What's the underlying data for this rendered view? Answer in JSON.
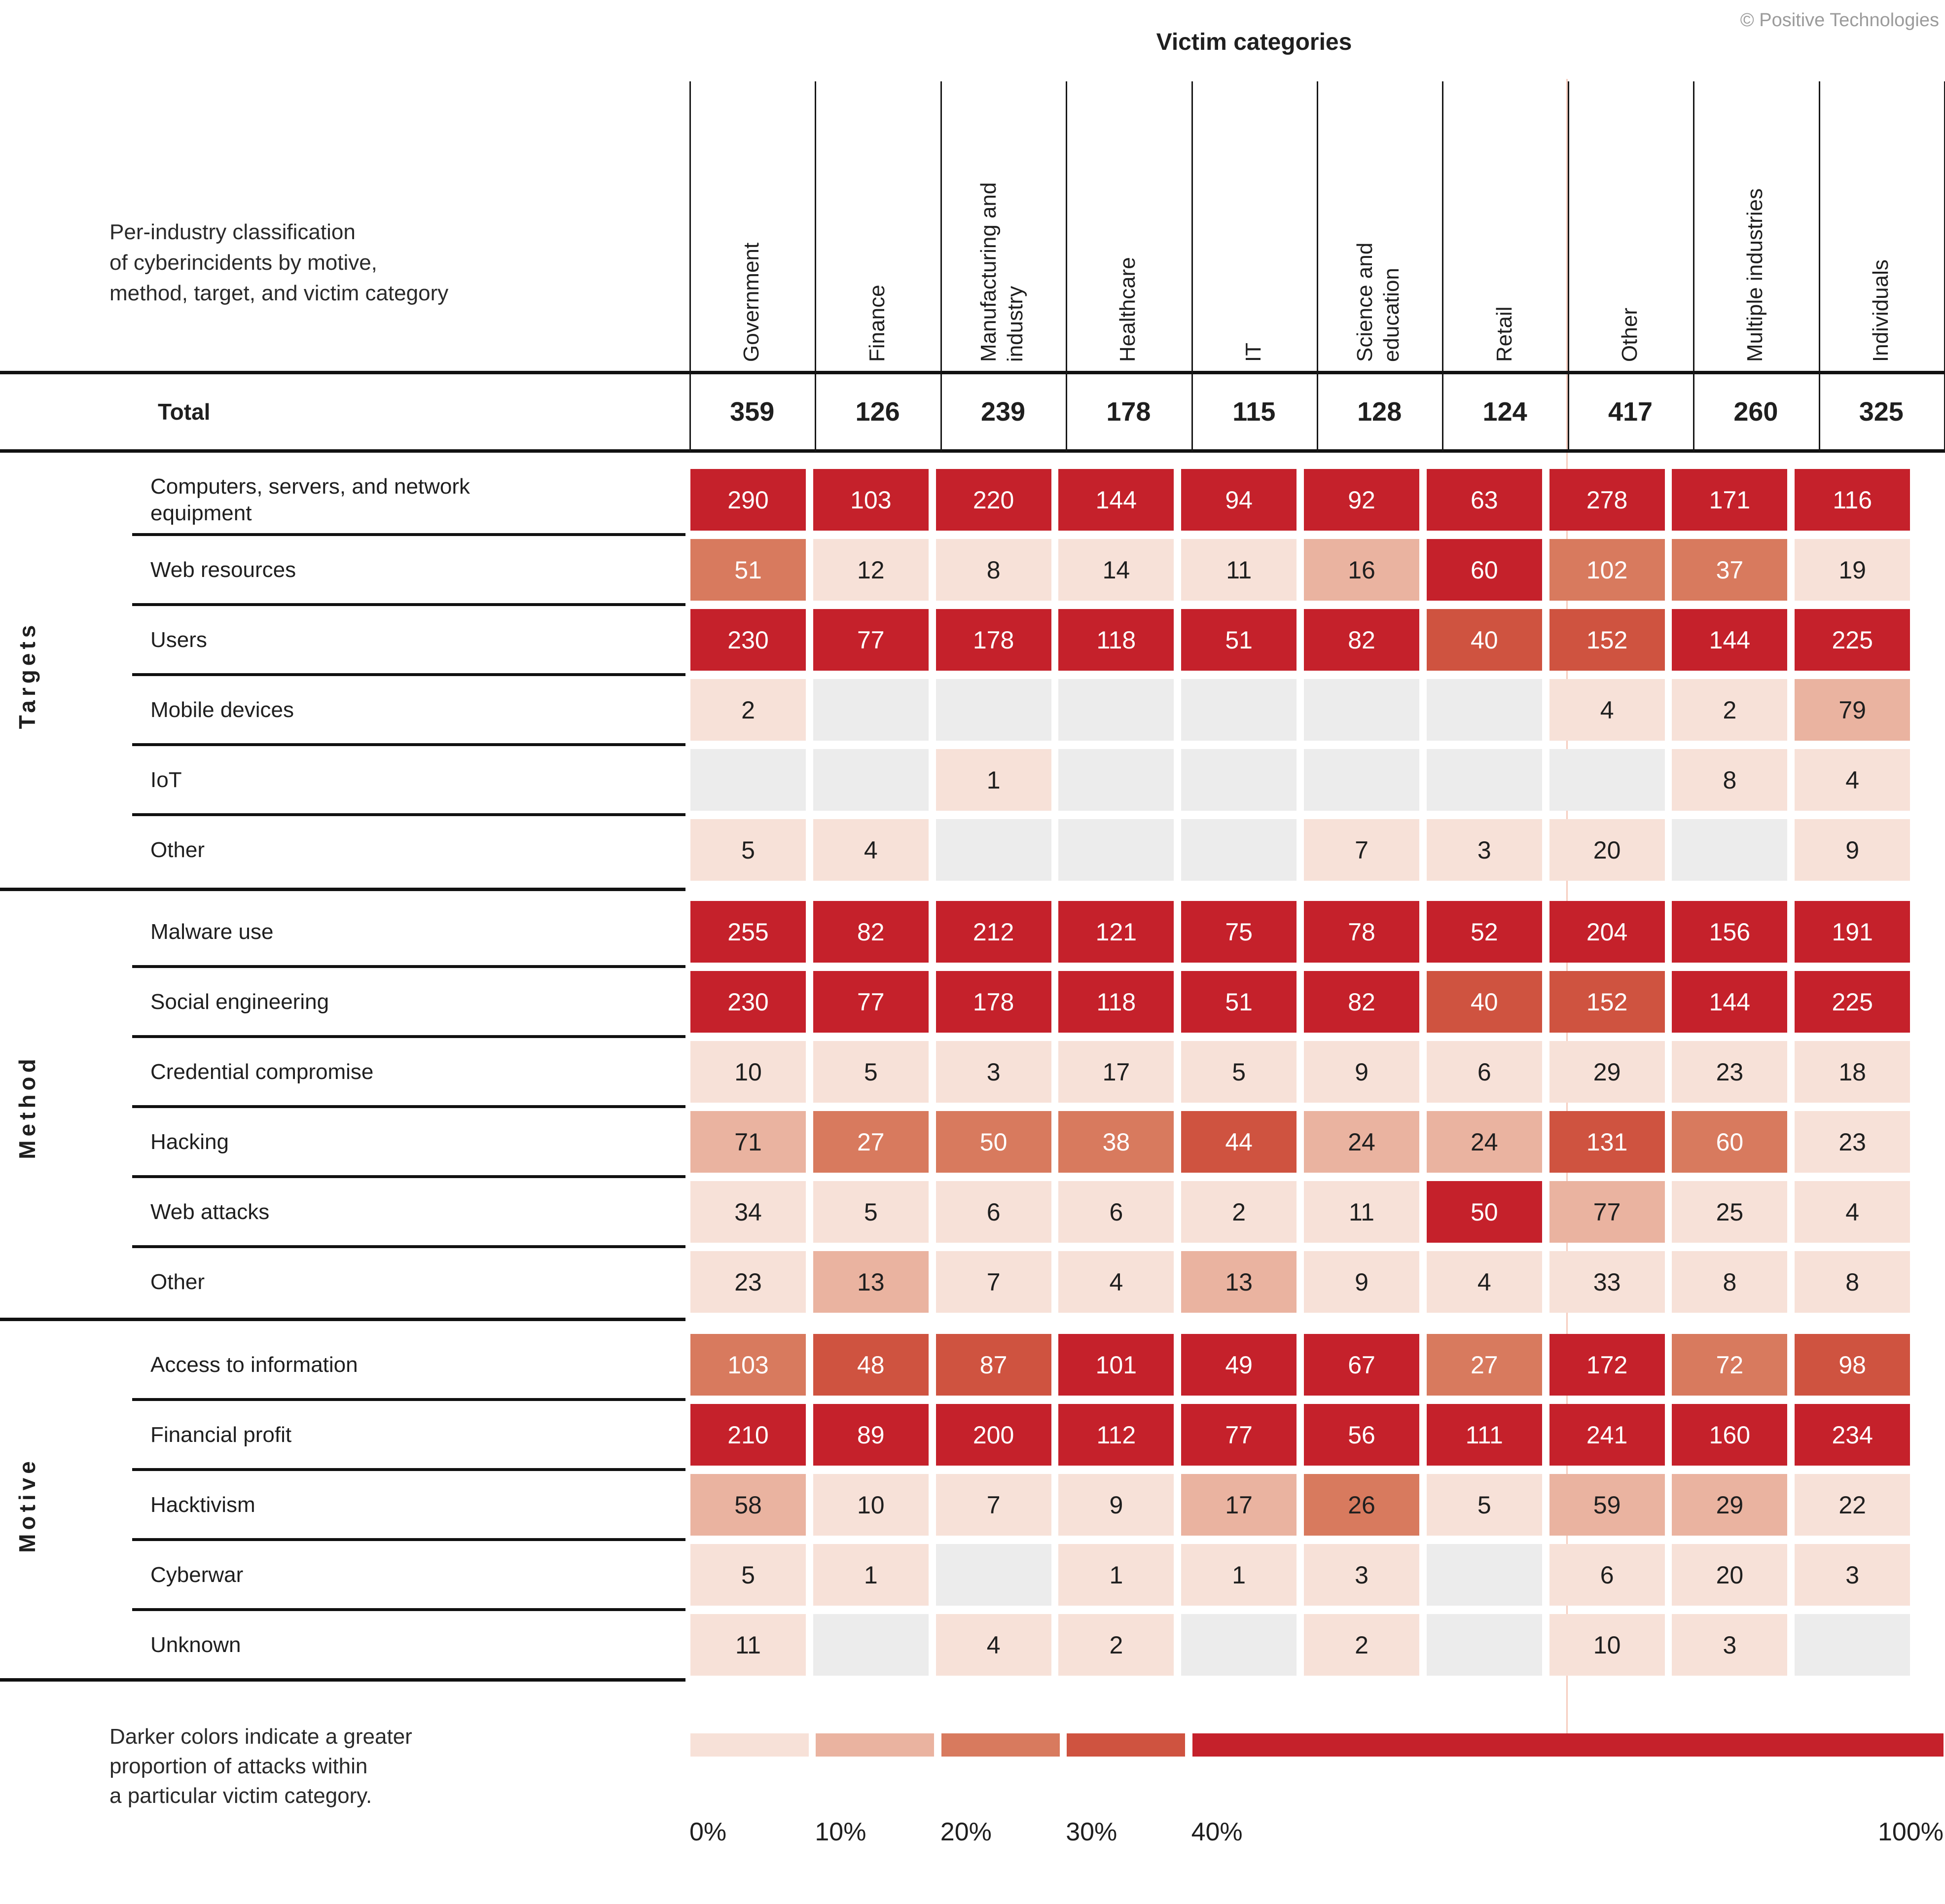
{
  "header": {
    "title": "Victim categories",
    "copyright": "© Positive Technologies"
  },
  "chart_data": {
    "type": "heatmap",
    "title": "Victim categories",
    "description": "Per-industry classification\nof cyberincidents by motive,\nmethod, target, and victim category",
    "columns": [
      "Government",
      "Finance",
      "Manufacturing and\nindustry",
      "Healthcare",
      "IT",
      "Science and\neducation",
      "Retail",
      "Other",
      "Multiple industries",
      "Individuals"
    ],
    "total_row": {
      "label": "Total",
      "values": [
        359,
        126,
        239,
        178,
        115,
        128,
        124,
        417,
        260,
        325
      ]
    },
    "sections": [
      {
        "name": "Targets",
        "rows": [
          {
            "label": "Computers, servers, and network\nequipment",
            "values": [
              290,
              103,
              220,
              144,
              94,
              92,
              63,
              278,
              171,
              116
            ],
            "levels": [
              5,
              5,
              5,
              5,
              5,
              5,
              5,
              5,
              5,
              5
            ]
          },
          {
            "label": "Web resources",
            "values": [
              51,
              12,
              8,
              14,
              11,
              16,
              60,
              102,
              37,
              19
            ],
            "levels": [
              3,
              1,
              1,
              1,
              1,
              2,
              5,
              3,
              3,
              1
            ]
          },
          {
            "label": "Users",
            "values": [
              230,
              77,
              178,
              118,
              51,
              82,
              40,
              152,
              144,
              225
            ],
            "levels": [
              5,
              5,
              5,
              5,
              5,
              5,
              4,
              4,
              5,
              5
            ]
          },
          {
            "label": "Mobile devices",
            "values": [
              2,
              null,
              null,
              null,
              null,
              null,
              null,
              4,
              2,
              79
            ],
            "levels": [
              1,
              0,
              0,
              0,
              0,
              0,
              0,
              1,
              1,
              2
            ]
          },
          {
            "label": "IoT",
            "values": [
              null,
              null,
              1,
              null,
              null,
              null,
              null,
              null,
              8,
              4
            ],
            "levels": [
              0,
              0,
              1,
              0,
              0,
              0,
              0,
              0,
              1,
              1
            ]
          },
          {
            "label": "Other",
            "values": [
              5,
              4,
              null,
              null,
              null,
              7,
              3,
              20,
              null,
              9
            ],
            "levels": [
              1,
              1,
              0,
              0,
              0,
              1,
              1,
              1,
              0,
              1
            ]
          }
        ]
      },
      {
        "name": "Method",
        "rows": [
          {
            "label": "Malware use",
            "values": [
              255,
              82,
              212,
              121,
              75,
              78,
              52,
              204,
              156,
              191
            ],
            "levels": [
              5,
              5,
              5,
              5,
              5,
              5,
              5,
              5,
              5,
              5
            ]
          },
          {
            "label": "Social engineering",
            "values": [
              230,
              77,
              178,
              118,
              51,
              82,
              40,
              152,
              144,
              225
            ],
            "levels": [
              5,
              5,
              5,
              5,
              5,
              5,
              4,
              4,
              5,
              5
            ]
          },
          {
            "label": "Credential compromise",
            "values": [
              10,
              5,
              3,
              17,
              5,
              9,
              6,
              29,
              23,
              18
            ],
            "levels": [
              1,
              1,
              1,
              1,
              1,
              1,
              1,
              1,
              1,
              1
            ]
          },
          {
            "label": "Hacking",
            "values": [
              71,
              27,
              50,
              38,
              44,
              24,
              24,
              131,
              60,
              23
            ],
            "levels": [
              2,
              3,
              3,
              3,
              4,
              2,
              2,
              4,
              3,
              1
            ]
          },
          {
            "label": "Web attacks",
            "values": [
              34,
              5,
              6,
              6,
              2,
              11,
              50,
              77,
              25,
              4
            ],
            "levels": [
              1,
              1,
              1,
              1,
              1,
              1,
              5,
              2,
              1,
              1
            ]
          },
          {
            "label": "Other",
            "values": [
              23,
              13,
              7,
              4,
              13,
              9,
              4,
              33,
              8,
              8
            ],
            "levels": [
              1,
              2,
              1,
              1,
              2,
              1,
              1,
              1,
              1,
              1
            ]
          }
        ]
      },
      {
        "name": "Motive",
        "rows": [
          {
            "label": "Access to information",
            "values": [
              103,
              48,
              87,
              101,
              49,
              67,
              27,
              172,
              72,
              98
            ],
            "levels": [
              3,
              4,
              4,
              5,
              5,
              5,
              3,
              5,
              3,
              4
            ]
          },
          {
            "label": "Financial profit",
            "values": [
              210,
              89,
              200,
              112,
              77,
              56,
              111,
              241,
              160,
              234
            ],
            "levels": [
              5,
              5,
              5,
              5,
              5,
              5,
              5,
              5,
              5,
              5
            ]
          },
          {
            "label": "Hacktivism",
            "values": [
              58,
              10,
              7,
              9,
              17,
              26,
              5,
              59,
              29,
              22
            ],
            "levels": [
              2,
              1,
              1,
              1,
              2,
              3,
              1,
              2,
              2,
              1
            ],
            "dark_text": [
              5
            ]
          },
          {
            "label": "Cyberwar",
            "values": [
              5,
              1,
              null,
              1,
              1,
              3,
              null,
              6,
              20,
              3
            ],
            "levels": [
              1,
              1,
              0,
              1,
              1,
              1,
              0,
              1,
              1,
              1
            ]
          },
          {
            "label": "Unknown",
            "values": [
              11,
              null,
              4,
              2,
              null,
              2,
              null,
              10,
              3,
              null
            ],
            "levels": [
              1,
              0,
              1,
              1,
              0,
              1,
              0,
              1,
              1,
              0
            ]
          }
        ]
      }
    ],
    "legend": {
      "note": "Darker colors indicate a greater\nproportion of attacks within\na particular victim category.",
      "stops": [
        "0%",
        "10%",
        "20%",
        "30%",
        "40%",
        "100%"
      ]
    }
  },
  "colors": {
    "level1": "#f7e1d8",
    "level2": "#eab3a0",
    "level3": "#d87a5e",
    "level4": "#cf5340",
    "level5": "#c5212b",
    "empty_cell": "#ececec",
    "dark_text": "#1f1f1f",
    "light_text": "#ffffff",
    "line_black": "#111111",
    "copyright_gray": "#9b9b9b"
  }
}
